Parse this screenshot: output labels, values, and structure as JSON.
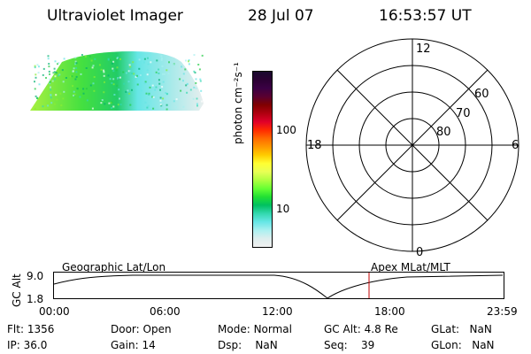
{
  "header": {
    "instrument": "Ultraviolet Imager",
    "date": "28 Jul 07",
    "time": "16:53:57 UT"
  },
  "colorbar": {
    "title": "photon cm⁻²s⁻¹",
    "tick_labels": [
      "100",
      "10"
    ],
    "colors": [
      "#1a0a2e",
      "#2b0033",
      "#3b0044",
      "#5a0030",
      "#800000",
      "#b00010",
      "#e0002a",
      "#ff2a00",
      "#ff6a00",
      "#ff9900",
      "#ffcc00",
      "#ffff33",
      "#e8ff55",
      "#b0ff40",
      "#66ff33",
      "#22e033",
      "#00c060",
      "#33d9b0",
      "#66e6e6",
      "#aaf0f0",
      "#ddeeee",
      "#f0f0f0"
    ]
  },
  "polar": {
    "hour_labels": {
      "top": "12",
      "bottom": "0",
      "left": "18",
      "right": "6"
    },
    "lat_labels": [
      "60",
      "70",
      "80"
    ]
  },
  "timeline": {
    "y_axis_title": "GC Alt",
    "y_ticks": [
      "9.0",
      "1.8"
    ],
    "left_label": "Geographic Lat/Lon",
    "right_label": "Apex MLat/MLT",
    "x_ticks": [
      "00:00",
      "06:00",
      "12:00",
      "18:00",
      "23:59"
    ]
  },
  "status": {
    "row1": [
      {
        "key": "Flt:",
        "val": "1356"
      },
      {
        "key": "Door:",
        "val": "Open"
      },
      {
        "key": "Mode:",
        "val": "Normal"
      },
      {
        "key": "GC Alt:",
        "val": "4.8 Re"
      },
      {
        "key": "GLat:",
        "val": "NaN"
      }
    ],
    "row2": [
      {
        "key": "IP:",
        "val": "36.0"
      },
      {
        "key": "Gain:",
        "val": "14"
      },
      {
        "key": "Dsp:",
        "val": "NaN"
      },
      {
        "key": "Seq:",
        "val": "39"
      },
      {
        "key": "GLon:",
        "val": "NaN"
      }
    ]
  }
}
